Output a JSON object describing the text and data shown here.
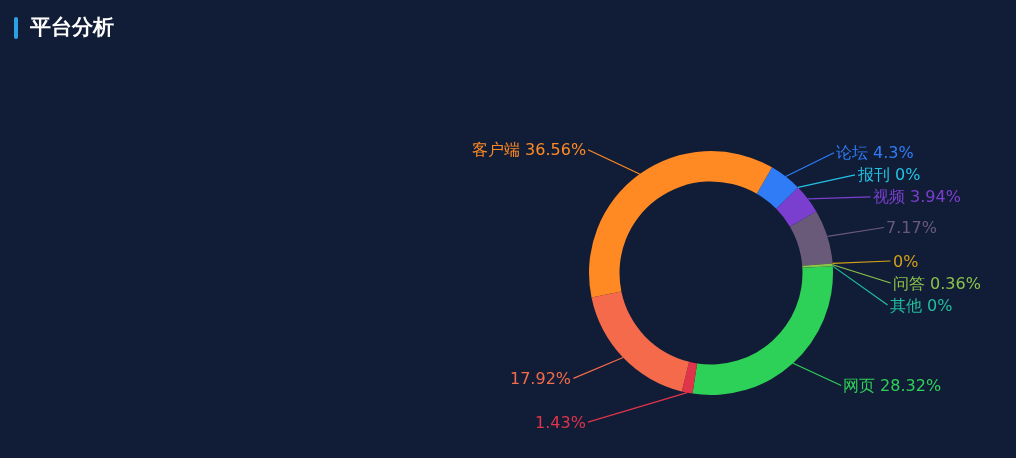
{
  "chart_data": {
    "type": "donut",
    "title": "平台分析",
    "categories": [
      "论坛",
      "报刊",
      "视频",
      null,
      null,
      "问答",
      "其他",
      "网页",
      null,
      null,
      "客户端"
    ],
    "values": [
      4.3,
      0,
      3.94,
      7.17,
      0,
      0.36,
      0,
      28.32,
      1.43,
      17.92,
      36.56
    ],
    "value_labels": [
      "4.3%",
      "0%",
      "3.94%",
      "7.17%",
      "0%",
      "0.36%",
      "0%",
      "28.32%",
      "1.43%",
      "17.92%",
      "36.56%"
    ],
    "colors": [
      "#2f7cf6",
      "#22c3e6",
      "#7b3fd0",
      "#6a5a7a",
      "#d4a017",
      "#8bc34a",
      "#1fbf9f",
      "#2ed158",
      "#e0344a",
      "#f46a4a",
      "#ff8a23"
    ]
  }
}
